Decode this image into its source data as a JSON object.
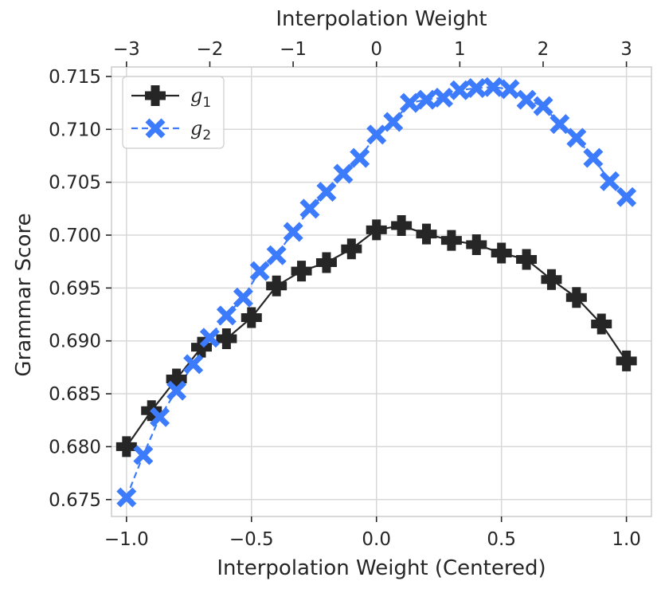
{
  "chart_data": {
    "type": "line",
    "title": "",
    "xlabel": "Interpolation Weight (Centered)",
    "x2label": "Interpolation Weight",
    "ylabel": "Grammar Score",
    "xlim": [
      -1.06,
      1.1
    ],
    "ylim": [
      0.6734,
      0.7159
    ],
    "x_ticks": [
      -1.0,
      -0.5,
      0.0,
      0.5,
      1.0
    ],
    "x_tick_labels": [
      "−1.0",
      "−0.5",
      "0.0",
      "0.5",
      "1.0"
    ],
    "x2_ticks": [
      -3,
      -2,
      -1,
      0,
      1,
      2,
      3
    ],
    "x2_tick_labels": [
      "−3",
      "−2",
      "−1",
      "0",
      "1",
      "2",
      "3"
    ],
    "y_ticks": [
      0.675,
      0.68,
      0.685,
      0.69,
      0.695,
      0.7,
      0.705,
      0.71,
      0.715
    ],
    "y_tick_labels": [
      "0.675",
      "0.680",
      "0.685",
      "0.690",
      "0.695",
      "0.700",
      "0.705",
      "0.710",
      "0.715"
    ],
    "grid": true,
    "legend_position": "top-left",
    "series": [
      {
        "name": "g1",
        "legend_main": "g",
        "legend_sub": "1",
        "color": "#262626",
        "marker": "plus",
        "line": "solid",
        "x": [
          -1.0,
          -0.9,
          -0.8,
          -0.7,
          -0.6,
          -0.5,
          -0.4,
          -0.3,
          -0.2,
          -0.1,
          0.0,
          0.1,
          0.2,
          0.3,
          0.4,
          0.5,
          0.6,
          0.7,
          0.8,
          0.9,
          1.0
        ],
        "values": [
          0.68,
          0.6834,
          0.6864,
          0.6894,
          0.6902,
          0.6922,
          0.6952,
          0.6966,
          0.6974,
          0.6987,
          0.7005,
          0.7009,
          0.7001,
          0.6995,
          0.6991,
          0.6983,
          0.6977,
          0.6958,
          0.6941,
          0.6916,
          0.6881
        ]
      },
      {
        "name": "g2",
        "legend_main": "g",
        "legend_sub": "2",
        "color": "#3d7bfd",
        "marker": "x",
        "line": "dashed",
        "x": [
          -1.0,
          -0.933,
          -0.867,
          -0.8,
          -0.733,
          -0.667,
          -0.6,
          -0.533,
          -0.467,
          -0.4,
          -0.333,
          -0.267,
          -0.2,
          -0.133,
          -0.067,
          0.0,
          0.067,
          0.133,
          0.2,
          0.267,
          0.333,
          0.4,
          0.467,
          0.533,
          0.6,
          0.667,
          0.733,
          0.8,
          0.867,
          0.933,
          1.0
        ],
        "values": [
          0.6752,
          0.6792,
          0.6828,
          0.6853,
          0.6878,
          0.6903,
          0.6924,
          0.6941,
          0.6966,
          0.6981,
          0.7003,
          0.7025,
          0.7041,
          0.7058,
          0.7073,
          0.7095,
          0.7107,
          0.7125,
          0.7128,
          0.713,
          0.7137,
          0.7139,
          0.714,
          0.7138,
          0.7128,
          0.7122,
          0.7105,
          0.7092,
          0.7073,
          0.7051,
          0.7036
        ]
      }
    ]
  }
}
